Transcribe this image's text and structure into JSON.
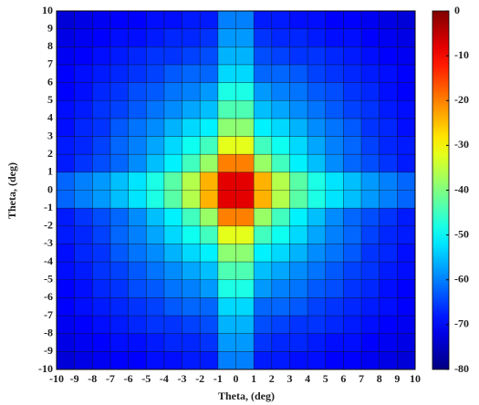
{
  "chart_data": {
    "type": "heatmap",
    "xlabel": "Theta, (deg)",
    "ylabel": "Theta, (deg)",
    "xlim": [
      -10,
      10
    ],
    "ylim": [
      -10,
      10
    ],
    "xticks": [
      -10,
      -9,
      -8,
      -7,
      -6,
      -5,
      -4,
      -3,
      -2,
      -1,
      0,
      1,
      2,
      3,
      4,
      5,
      6,
      7,
      8,
      9,
      10
    ],
    "yticks": [
      -10,
      -9,
      -8,
      -7,
      -6,
      -5,
      -4,
      -3,
      -2,
      -1,
      0,
      1,
      2,
      3,
      4,
      5,
      6,
      7,
      8,
      9,
      10
    ],
    "grid": true,
    "colormap": "jet",
    "zlim": [
      -80,
      0
    ],
    "zticks": [
      0,
      -10,
      -20,
      -30,
      -40,
      -50,
      -60,
      -70,
      -80
    ],
    "z": [
      [
        -73,
        -72,
        -71,
        -70,
        -70,
        -69,
        -69,
        -68,
        -68,
        -60,
        -60,
        -68,
        -68,
        -69,
        -69,
        -70,
        -70,
        -71,
        -72,
        -73
      ],
      [
        -72,
        -71,
        -70,
        -69,
        -69,
        -68,
        -67,
        -67,
        -66,
        -58,
        -58,
        -66,
        -67,
        -67,
        -68,
        -69,
        -69,
        -70,
        -71,
        -72
      ],
      [
        -71,
        -70,
        -69,
        -68,
        -67,
        -66,
        -66,
        -65,
        -64,
        -56,
        -56,
        -64,
        -65,
        -66,
        -66,
        -67,
        -68,
        -69,
        -70,
        -71
      ],
      [
        -70,
        -69,
        -68,
        -67,
        -66,
        -65,
        -63,
        -62,
        -62,
        -53,
        -53,
        -62,
        -62,
        -63,
        -65,
        -66,
        -67,
        -68,
        -69,
        -70
      ],
      [
        -70,
        -69,
        -67,
        -66,
        -64,
        -63,
        -61,
        -60,
        -58,
        -48,
        -48,
        -58,
        -60,
        -61,
        -63,
        -64,
        -66,
        -67,
        -69,
        -70
      ],
      [
        -69,
        -68,
        -66,
        -65,
        -63,
        -61,
        -59,
        -57,
        -55,
        -44,
        -44,
        -55,
        -57,
        -59,
        -61,
        -63,
        -65,
        -66,
        -68,
        -69
      ],
      [
        -69,
        -67,
        -66,
        -63,
        -61,
        -59,
        -56,
        -53,
        -51,
        -39,
        -39,
        -51,
        -53,
        -56,
        -59,
        -61,
        -63,
        -66,
        -67,
        -69
      ],
      [
        -68,
        -67,
        -65,
        -62,
        -60,
        -57,
        -53,
        -49,
        -45,
        -32,
        -32,
        -45,
        -49,
        -53,
        -57,
        -60,
        -62,
        -65,
        -67,
        -68
      ],
      [
        -68,
        -66,
        -64,
        -62,
        -59,
        -55,
        -51,
        -45,
        -38,
        -20,
        -20,
        -38,
        -45,
        -51,
        -55,
        -59,
        -62,
        -64,
        -66,
        -68
      ],
      [
        -62,
        -60,
        -58,
        -55,
        -52,
        -48,
        -43,
        -36,
        -24,
        -8,
        -8,
        -24,
        -36,
        -43,
        -48,
        -52,
        -55,
        -58,
        -60,
        -62
      ],
      [
        -62,
        -60,
        -58,
        -55,
        -52,
        -48,
        -43,
        -36,
        -24,
        -8,
        -8,
        -24,
        -36,
        -43,
        -48,
        -52,
        -55,
        -58,
        -60,
        -62
      ],
      [
        -68,
        -66,
        -64,
        -62,
        -59,
        -55,
        -51,
        -45,
        -38,
        -20,
        -20,
        -38,
        -45,
        -51,
        -55,
        -59,
        -62,
        -64,
        -66,
        -68
      ],
      [
        -68,
        -67,
        -65,
        -62,
        -60,
        -57,
        -53,
        -49,
        -45,
        -32,
        -32,
        -45,
        -49,
        -53,
        -57,
        -60,
        -62,
        -65,
        -67,
        -68
      ],
      [
        -69,
        -67,
        -66,
        -63,
        -61,
        -59,
        -56,
        -53,
        -51,
        -39,
        -39,
        -51,
        -53,
        -56,
        -59,
        -61,
        -63,
        -66,
        -67,
        -69
      ],
      [
        -69,
        -68,
        -66,
        -65,
        -63,
        -61,
        -59,
        -57,
        -55,
        -44,
        -44,
        -55,
        -57,
        -59,
        -61,
        -63,
        -65,
        -66,
        -68,
        -69
      ],
      [
        -70,
        -69,
        -67,
        -66,
        -64,
        -63,
        -61,
        -60,
        -58,
        -48,
        -48,
        -58,
        -60,
        -61,
        -63,
        -64,
        -66,
        -67,
        -69,
        -70
      ],
      [
        -70,
        -69,
        -68,
        -67,
        -66,
        -65,
        -63,
        -62,
        -62,
        -53,
        -53,
        -62,
        -62,
        -63,
        -65,
        -66,
        -67,
        -68,
        -69,
        -70
      ],
      [
        -71,
        -70,
        -69,
        -68,
        -67,
        -66,
        -66,
        -65,
        -64,
        -56,
        -56,
        -64,
        -65,
        -66,
        -66,
        -67,
        -68,
        -69,
        -70,
        -71
      ],
      [
        -72,
        -71,
        -70,
        -69,
        -69,
        -68,
        -67,
        -67,
        -66,
        -58,
        -58,
        -66,
        -67,
        -67,
        -68,
        -69,
        -69,
        -70,
        -71,
        -72
      ],
      [
        -73,
        -72,
        -71,
        -70,
        -70,
        -69,
        -69,
        -68,
        -68,
        -60,
        -60,
        -68,
        -68,
        -69,
        -69,
        -70,
        -70,
        -71,
        -72,
        -73
      ]
    ]
  }
}
